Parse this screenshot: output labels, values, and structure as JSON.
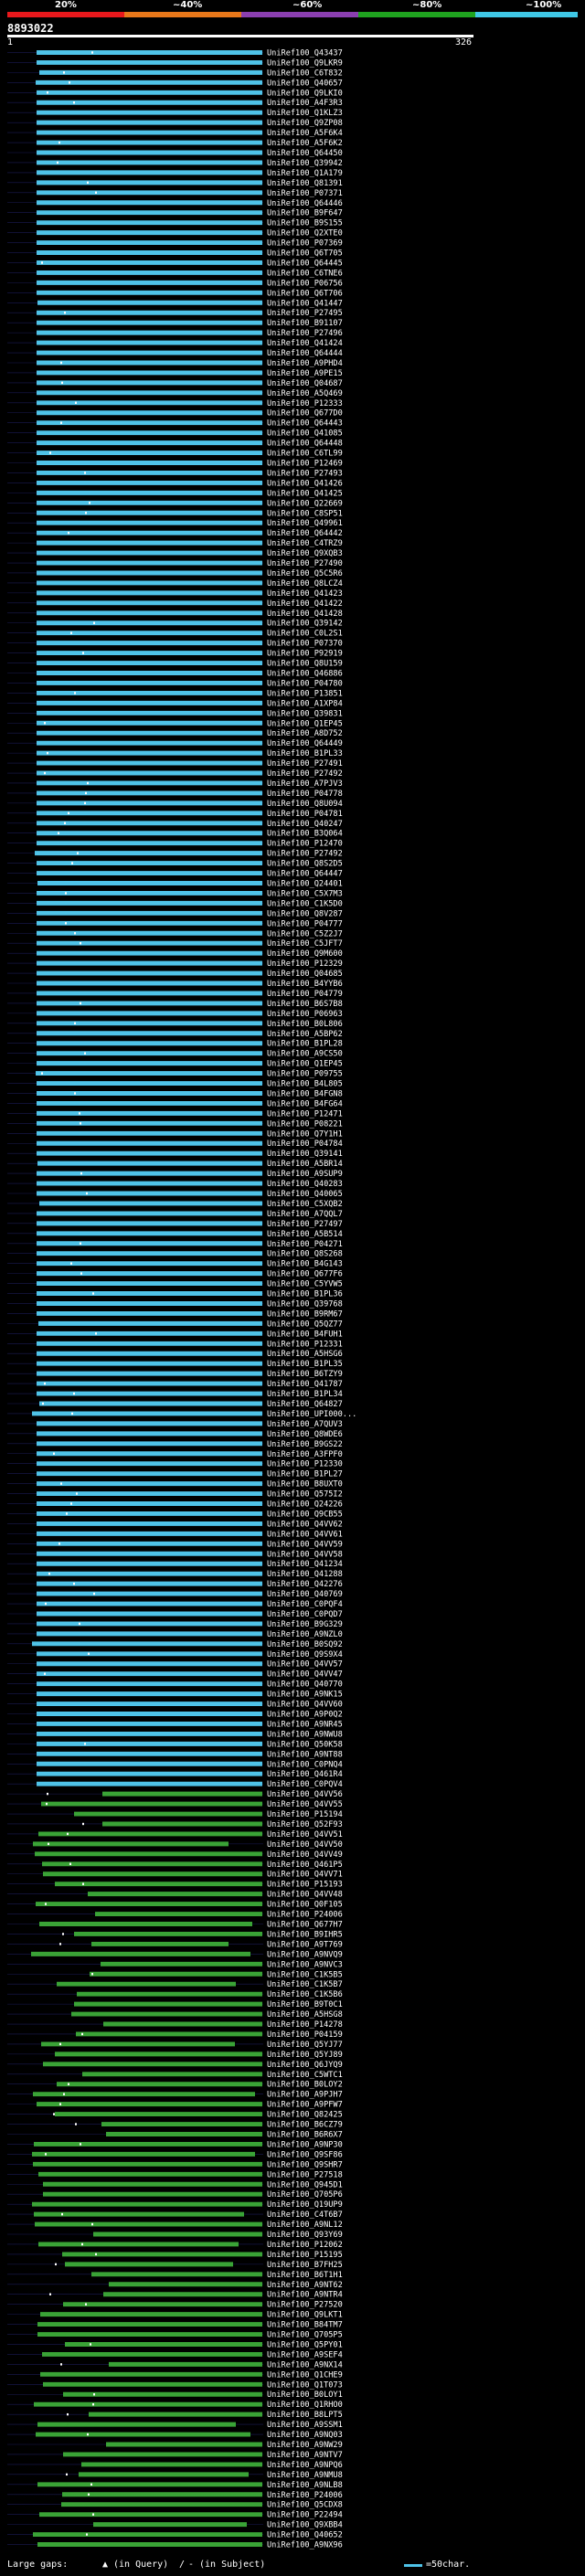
{
  "scale": {
    "labels": [
      "20%",
      "~40%",
      "~60%",
      "~80%",
      "~100%"
    ],
    "colors": [
      "#e8181c",
      "#e8781a",
      "#8b3fb0",
      "#1fa31f",
      "#3fc8e6"
    ]
  },
  "query": {
    "title": "8893022",
    "start": "1",
    "end": "326"
  },
  "footer": {
    "large_gaps": "Large gaps:",
    "in_query": "(in Query)",
    "separator": "/",
    "in_subject": "(in Subject)",
    "legend": "=50char."
  },
  "colors": {
    "cyan": "#4fc3e8",
    "green": "#3aa336"
  },
  "hits": [
    "UniRef100_Q43437",
    "UniRef100_Q9LKR9",
    "UniRef100_C6T832",
    "UniRef100_Q40657",
    "UniRef100_Q9LKI0",
    "UniRef100_A4F3R3",
    "UniRef100_Q1KLZ3",
    "UniRef100_Q9ZP08",
    "UniRef100_A5F6K4",
    "UniRef100_A5F6K2",
    "UniRef100_Q64450",
    "UniRef100_Q39942",
    "UniRef100_Q1A179",
    "UniRef100_Q81391",
    "UniRef100_P07371",
    "UniRef100_Q64446",
    "UniRef100_B9F647",
    "UniRef100_B9S155",
    "UniRef100_Q2XTE0",
    "UniRef100_P07369",
    "UniRef100_Q6T705",
    "UniRef100_Q64445",
    "UniRef100_C6TNE6",
    "UniRef100_P06756",
    "UniRef100_Q6T706",
    "UniRef100_Q41447",
    "UniRef100_P27495",
    "UniRef100_B91107",
    "UniRef100_P27496",
    "UniRef100_Q41424",
    "UniRef100_Q64444",
    "UniRef100_A9PHD4",
    "UniRef100_A9PE15",
    "UniRef100_Q04687",
    "UniRef100_A5Q469",
    "UniRef100_P12333",
    "UniRef100_Q677D0",
    "UniRef100_Q64443",
    "UniRef100_Q41085",
    "UniRef100_Q64448",
    "UniRef100_C6TL99",
    "UniRef100_P12469",
    "UniRef100_P27493",
    "UniRef100_Q41426",
    "UniRef100_Q41425",
    "UniRef100_Q22669",
    "UniRef100_C8SP51",
    "UniRef100_Q49961",
    "UniRef100_Q64442",
    "UniRef100_C4TRZ9",
    "UniRef100_Q9XQB3",
    "UniRef100_P27490",
    "UniRef100_Q5C5R6",
    "UniRef100_Q8LCZ4",
    "UniRef100_Q41423",
    "UniRef100_Q41422",
    "UniRef100_Q41428",
    "UniRef100_Q39142",
    "UniRef100_C0L2S1",
    "UniRef100_P07370",
    "UniRef100_P92919",
    "UniRef100_Q8U159",
    "UniRef100_Q46886",
    "UniRef100_P04780",
    "UniRef100_P13851",
    "UniRef100_A1XP84",
    "UniRef100_Q39831",
    "UniRef100_Q1EP45",
    "UniRef100_A8D752",
    "UniRef100_Q64449",
    "UniRef100_B1PL33",
    "UniRef100_P27491",
    "UniRef100_P27492",
    "UniRef100_A7PJV3",
    "UniRef100_P04778",
    "UniRef100_Q8U094",
    "UniRef100_P04781",
    "UniRef100_Q40247",
    "UniRef100_B3Q064",
    "UniRef100_P12470",
    "UniRef100_P27492",
    "UniRef100_Q8S2D5",
    "UniRef100_Q64447",
    "UniRef100_Q24401",
    "UniRef100_C5X7M3",
    "UniRef100_C1K5D0",
    "UniRef100_Q8V287",
    "UniRef100_P04777",
    "UniRef100_C5Z2J7",
    "UniRef100_C5JFT7",
    "UniRef100_Q9M600",
    "UniRef100_P12329",
    "UniRef100_Q04685",
    "UniRef100_B4YYB6",
    "UniRef100_P04779",
    "UniRef100_B6S7B8",
    "UniRef100_P06963",
    "UniRef100_B0L806",
    "UniRef100_A5BP62",
    "UniRef100_B1PL28",
    "UniRef100_A9CS50",
    "UniRef100_Q1EP45",
    "UniRef100_P09755",
    "UniRef100_B4L805",
    "UniRef100_B4FGN8",
    "UniRef100_B4FG64",
    "UniRef100_P12471",
    "UniRef100_P08221",
    "UniRef100_Q7Y1H1",
    "UniRef100_P04784",
    "UniRef100_Q39141",
    "UniRef100_A5BR14",
    "UniRef100_A9SUP9",
    "UniRef100_Q40283",
    "UniRef100_Q40065",
    "UniRef100_C5XQB2",
    "UniRef100_A7QQL7",
    "UniRef100_P27497",
    "UniRef100_A5B514",
    "UniRef100_P04271",
    "UniRef100_Q8S268",
    "UniRef100_B4G143",
    "UniRef100_Q677F6",
    "UniRef100_C5YVW5",
    "UniRef100_B1PL36",
    "UniRef100_Q39768",
    "UniRef100_B9RM67",
    "UniRef100_Q5QZ77",
    "UniRef100_B4FUH1",
    "UniRef100_P12331",
    "UniRef100_A5HSG6",
    "UniRef100_B1PL35",
    "UniRef100_B6TZY9",
    "UniRef100_Q41787",
    "UniRef100_B1PL34",
    "UniRef100_Q64827",
    "UniRef100_UPI000...",
    "UniRef100_A7QUV3",
    "UniRef100_Q8WDE6",
    "UniRef100_B9GS22",
    "UniRef100_A3FPF0",
    "UniRef100_P12330",
    "UniRef100_B1PL27",
    "UniRef100_B8UXT0",
    "UniRef100_Q575I2",
    "UniRef100_Q24226",
    "UniRef100_Q9CB55",
    "UniRef100_Q4VV62",
    "UniRef100_Q4VV61",
    "UniRef100_Q4VV59",
    "UniRef100_Q4VV58",
    "UniRef100_Q41234",
    "UniRef100_Q41288",
    "UniRef100_Q42276",
    "UniRef100_Q40769",
    "UniRef100_C0PQF4",
    "UniRef100_C0PQD7",
    "UniRef100_B9G329",
    "UniRef100_A9NZL0",
    "UniRef100_B0SQ92",
    "UniRef100_Q9S9X4",
    "UniRef100_Q4VV57",
    "UniRef100_Q4VV47",
    "UniRef100_Q40770",
    "UniRef100_A9NK15",
    "UniRef100_Q4VV60",
    "UniRef100_A9P0Q2",
    "UniRef100_A9NR45",
    "UniRef100_A9NWU8",
    "UniRef100_Q50K58",
    "UniRef100_A9NT88",
    "UniRef100_C0PNQ4",
    "UniRef100_Q461R4",
    "UniRef100_C0PQV4",
    "UniRef100_Q4VV56",
    "UniRef100_Q4VV55",
    "UniRef100_P15194",
    "UniRef100_Q52F93",
    "UniRef100_Q4VV51",
    "UniRef100_Q4VV50",
    "UniRef100_Q4VV49",
    "UniRef100_Q461P5",
    "UniRef100_Q4VV71",
    "UniRef100_P15193",
    "UniRef100_Q4VV48",
    "UniRef100_Q0F105",
    "UniRef100_P24006",
    "UniRef100_Q677H7",
    "UniRef100_B9IHR5",
    "UniRef100_A9T769",
    "UniRef100_A9NVQ9",
    "UniRef100_A9NVC3",
    "UniRef100_C1K5B5",
    "UniRef100_C1K5B7",
    "UniRef100_C1K5B6",
    "UniRef100_B9T0C1",
    "UniRef100_A5HSG8",
    "UniRef100_P14278",
    "UniRef100_P04159",
    "UniRef100_Q5YJ77",
    "UniRef100_Q5YJ89",
    "UniRef100_Q6JYQ9",
    "UniRef100_C5WTC1",
    "UniRef100_B0LOY2",
    "UniRef100_A9PJH7",
    "UniRef100_A9PFW7",
    "UniRef100_Q82425",
    "UniRef100_B6CZ79",
    "UniRef100_B6R6X7",
    "UniRef100_A9NP30",
    "UniRef100_Q9SF86",
    "UniRef100_Q9SHR7",
    "UniRef100_P27518",
    "UniRef100_Q945D1",
    "UniRef100_Q705P6",
    "UniRef100_Q19UP9",
    "UniRef100_C4T6B7",
    "UniRef100_A9NL12",
    "UniRef100_Q93Y69",
    "UniRef100_P12062",
    "UniRef100_P15195",
    "UniRef100_B7FH25",
    "UniRef100_B6T1H1",
    "UniRef100_A9NT62",
    "UniRef100_A9NTR4",
    "UniRef100_P27520",
    "UniRef100_Q9LKT1",
    "UniRef100_B84TM7",
    "UniRef100_Q705P5",
    "UniRef100_Q5PY01",
    "UniRef100_A9SEF4",
    "UniRef100_A9NX14",
    "UniRef100_Q1CHE9",
    "UniRef100_Q1T073",
    "UniRef100_B0LOY1",
    "UniRef100_Q1RHO0",
    "UniRef100_B8LPT5",
    "UniRef100_A9SSM1",
    "UniRef100_A9NQ03",
    "UniRef100_A9NW29",
    "UniRef100_A9NTV7",
    "UniRef100_A9NPQ6",
    "UniRef100_A9NMU8",
    "UniRef100_A9NLB8",
    "UniRef100_P24006",
    "UniRef100_Q5CDX8",
    "UniRef100_P22494",
    "UniRef100_Q9XBB4",
    "UniRef100_Q40652",
    "UniRef100_A9NX96"
  ]
}
